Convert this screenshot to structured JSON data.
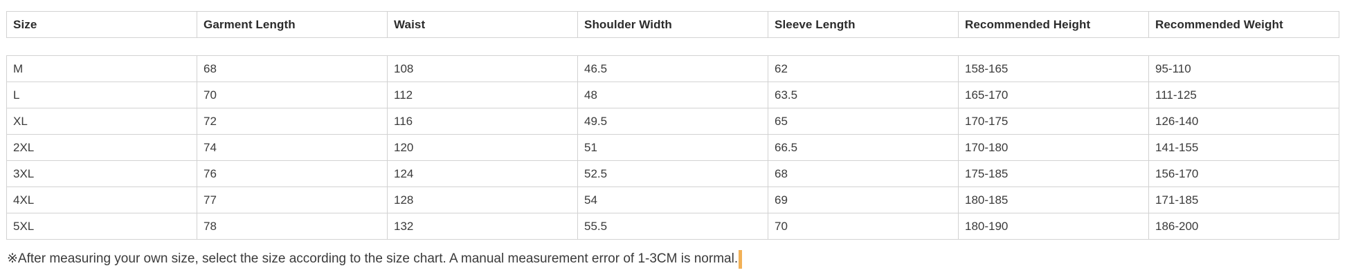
{
  "table": {
    "columns": [
      "Size",
      "Garment Length",
      "Waist",
      "Shoulder Width",
      "Sleeve Length",
      "Recommended Height",
      "Recommended Weight"
    ],
    "rows": [
      [
        "M",
        "68",
        "108",
        "46.5",
        "62",
        "158-165",
        "95-110"
      ],
      [
        "L",
        "70",
        "112",
        "48",
        "63.5",
        "165-170",
        "111-125"
      ],
      [
        "XL",
        "72",
        "116",
        "49.5",
        "65",
        "170-175",
        "126-140"
      ],
      [
        "2XL",
        "74",
        "120",
        "51",
        "66.5",
        "170-180",
        "141-155"
      ],
      [
        "3XL",
        "76",
        "124",
        "52.5",
        "68",
        "175-185",
        "156-170"
      ],
      [
        "4XL",
        "77",
        "128",
        "54",
        "69",
        "180-185",
        "171-185"
      ],
      [
        "5XL",
        "78",
        "132",
        "55.5",
        "70",
        "180-190",
        "186-200"
      ]
    ]
  },
  "note": {
    "text": "※After measuring your own size, select the size according to the size chart. A manual measurement error of 1-3CM is normal."
  },
  "colors": {
    "border": "#d2d2d2",
    "text": "#3a3a3a",
    "header-text": "#2b2b2b",
    "caret": "#f2b157",
    "background": "#ffffff"
  }
}
